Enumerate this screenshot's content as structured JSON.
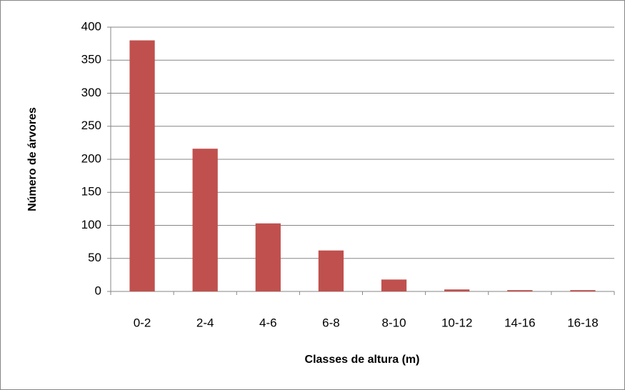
{
  "chart_data": {
    "type": "bar",
    "x_label": "Classes de altura (m)",
    "y_label": "Número de árvores",
    "categories": [
      "0-2",
      "2-4",
      "4-6",
      "6-8",
      "8-10",
      "10-12",
      "14-16",
      "16-18"
    ],
    "values": [
      380,
      216,
      103,
      62,
      18,
      3,
      2,
      2
    ],
    "color": "#c0504d",
    "ylim": [
      0,
      400
    ],
    "yticks": [
      0,
      50,
      100,
      150,
      200,
      250,
      300,
      350,
      400
    ],
    "grid": true
  }
}
